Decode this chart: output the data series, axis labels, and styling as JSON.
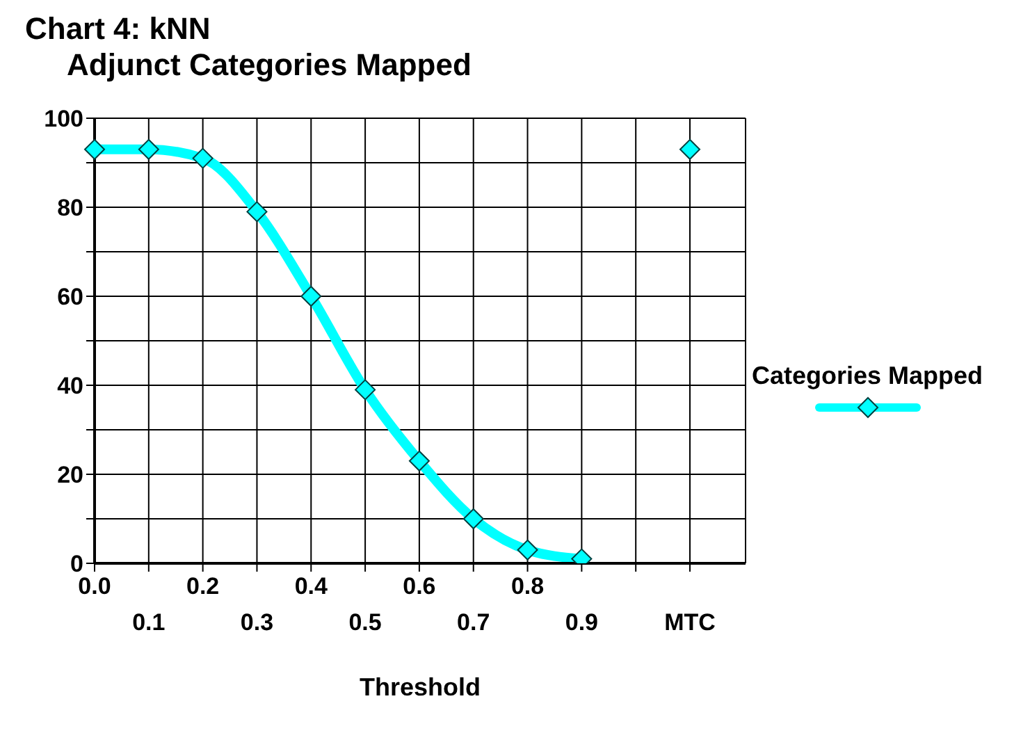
{
  "chart_data": {
    "type": "line",
    "title": "Chart 4: kNN",
    "subtitle": "Adjunct Categories Mapped",
    "xlabel": "Threshold",
    "categories": [
      "0.0",
      "0.1",
      "0.2",
      "0.3",
      "0.4",
      "0.5",
      "0.6",
      "0.7",
      "0.8",
      "0.9",
      null,
      "MTC"
    ],
    "series": [
      {
        "name": "Categories Mapped",
        "color": "#00ffff",
        "values": [
          93,
          93,
          91,
          79,
          60,
          39,
          23,
          10,
          3,
          1,
          null,
          93
        ]
      }
    ],
    "ylim": [
      0,
      100
    ],
    "yticks": [
      0,
      {
        "value": 10,
        "label": null
      },
      20,
      {
        "value": 30,
        "label": null
      },
      40,
      {
        "value": 50,
        "label": null
      },
      60,
      {
        "value": 70,
        "label": null
      },
      80,
      {
        "value": 90,
        "label": null
      },
      100
    ],
    "grid": true,
    "legend": "right",
    "marker": "diamond",
    "line_style": "solid"
  }
}
